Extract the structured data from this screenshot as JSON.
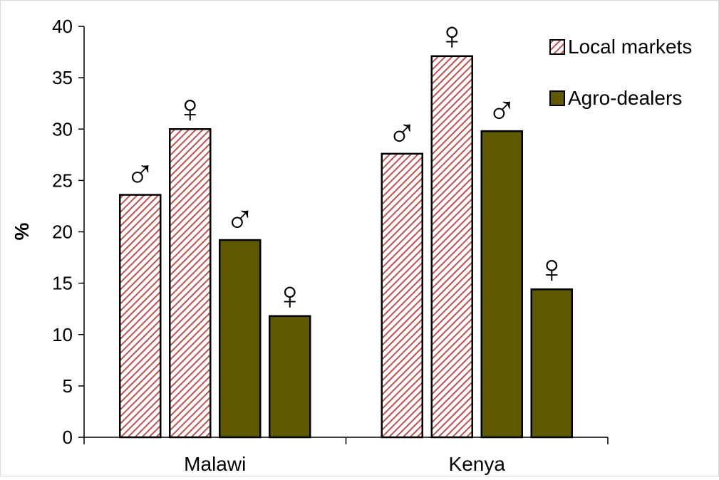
{
  "chart_data": {
    "type": "bar",
    "title": "",
    "xlabel": "",
    "ylabel": "%",
    "ylim": [
      0,
      40
    ],
    "yticks": [
      0,
      5,
      10,
      15,
      20,
      25,
      30,
      35,
      40
    ],
    "categories": [
      "Malawi",
      "Kenya"
    ],
    "bar_order": [
      "male",
      "female"
    ],
    "series": [
      {
        "name": "Local markets",
        "pattern": "hatched",
        "color": "#c0504d",
        "values": {
          "male": [
            23.6,
            27.6
          ],
          "female": [
            30.0,
            37.1
          ]
        }
      },
      {
        "name": "Agro-dealers",
        "pattern": "solid",
        "color": "#5f5a00",
        "values": {
          "male": [
            19.2,
            29.8
          ],
          "female": [
            11.8,
            14.4
          ]
        }
      }
    ],
    "symbols": {
      "male": "♂",
      "female": "♀"
    },
    "legend": "top-right",
    "grid": false
  }
}
